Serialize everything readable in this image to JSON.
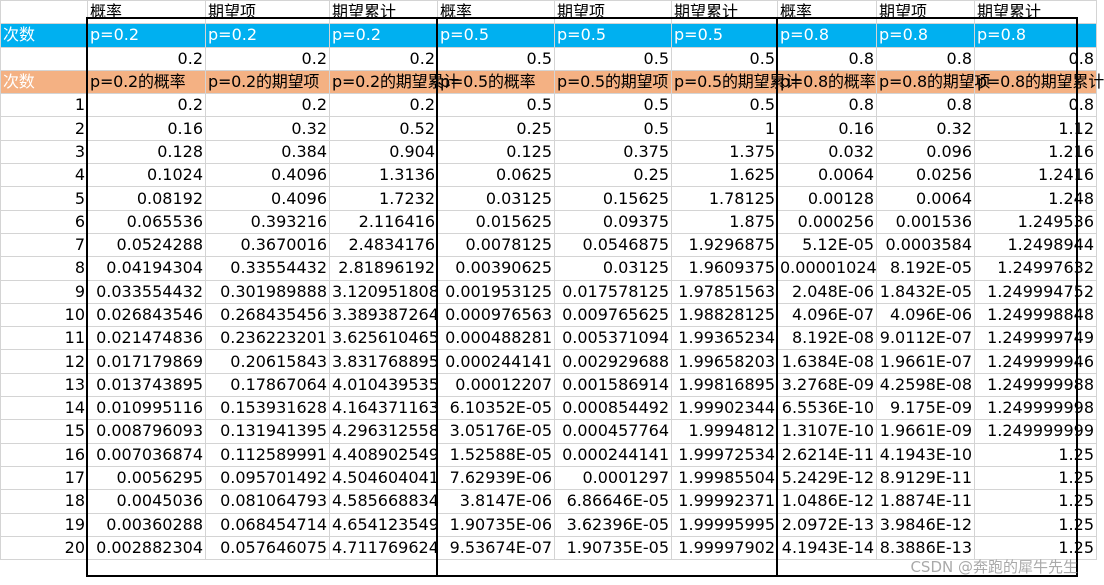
{
  "header_row": [
    "",
    "概率",
    "期望项",
    "期望累计",
    "概率",
    "期望项",
    "期望累计",
    "概率",
    "期望项",
    "期望累计"
  ],
  "p_row": [
    "次数",
    "p=0.2",
    "p=0.2",
    "p=0.2",
    "p=0.5",
    "p=0.5",
    "p=0.5",
    "p=0.8",
    "p=0.8",
    "p=0.8"
  ],
  "value_row": [
    "",
    "0.2",
    "0.2",
    "0.2",
    "0.5",
    "0.5",
    "0.5",
    "0.8",
    "0.8",
    "0.8"
  ],
  "label_row": [
    "次数",
    "p=0.2的概率",
    "p=0.2的期望项",
    "p=0.2的期望累计",
    "p=0.5的概率",
    "p=0.5的期望项",
    "p=0.5的期望累计",
    "p=0.8的概率",
    "p=0.8的期望项",
    "p=0.8的期望累计"
  ],
  "rows": [
    [
      "1",
      "0.2",
      "0.2",
      "0.2",
      "0.5",
      "0.5",
      "0.5",
      "0.8",
      "0.8",
      "0.8"
    ],
    [
      "2",
      "0.16",
      "0.32",
      "0.52",
      "0.25",
      "0.5",
      "1",
      "0.16",
      "0.32",
      "1.12"
    ],
    [
      "3",
      "0.128",
      "0.384",
      "0.904",
      "0.125",
      "0.375",
      "1.375",
      "0.032",
      "0.096",
      "1.216"
    ],
    [
      "4",
      "0.1024",
      "0.4096",
      "1.3136",
      "0.0625",
      "0.25",
      "1.625",
      "0.0064",
      "0.0256",
      "1.2416"
    ],
    [
      "5",
      "0.08192",
      "0.4096",
      "1.7232",
      "0.03125",
      "0.15625",
      "1.78125",
      "0.00128",
      "0.0064",
      "1.248"
    ],
    [
      "6",
      "0.065536",
      "0.393216",
      "2.116416",
      "0.015625",
      "0.09375",
      "1.875",
      "0.000256",
      "0.001536",
      "1.249536"
    ],
    [
      "7",
      "0.0524288",
      "0.3670016",
      "2.4834176",
      "0.0078125",
      "0.0546875",
      "1.9296875",
      "5.12E-05",
      "0.0003584",
      "1.2498944"
    ],
    [
      "8",
      "0.04194304",
      "0.33554432",
      "2.81896192",
      "0.00390625",
      "0.03125",
      "1.9609375",
      "0.00001024",
      "8.192E-05",
      "1.24997632"
    ],
    [
      "9",
      "0.033554432",
      "0.301989888",
      "3.120951808",
      "0.001953125",
      "0.017578125",
      "1.97851563",
      "2.048E-06",
      "1.8432E-05",
      "1.249994752"
    ],
    [
      "10",
      "0.026843546",
      "0.268435456",
      "3.389387264",
      "0.000976563",
      "0.009765625",
      "1.98828125",
      "4.096E-07",
      "4.096E-06",
      "1.249998848"
    ],
    [
      "11",
      "0.021474836",
      "0.236223201",
      "3.625610465",
      "0.000488281",
      "0.005371094",
      "1.99365234",
      "8.192E-08",
      "9.0112E-07",
      "1.249999749"
    ],
    [
      "12",
      "0.017179869",
      "0.20615843",
      "3.831768895",
      "0.000244141",
      "0.002929688",
      "1.99658203",
      "1.6384E-08",
      "1.9661E-07",
      "1.249999946"
    ],
    [
      "13",
      "0.013743895",
      "0.17867064",
      "4.010439535",
      "0.00012207",
      "0.001586914",
      "1.99816895",
      "3.2768E-09",
      "4.2598E-08",
      "1.249999988"
    ],
    [
      "14",
      "0.010995116",
      "0.153931628",
      "4.164371163",
      "6.10352E-05",
      "0.000854492",
      "1.99902344",
      "6.5536E-10",
      "9.175E-09",
      "1.249999998"
    ],
    [
      "15",
      "0.008796093",
      "0.131941395",
      "4.296312558",
      "3.05176E-05",
      "0.000457764",
      "1.9994812",
      "1.3107E-10",
      "1.9661E-09",
      "1.249999999"
    ],
    [
      "16",
      "0.007036874",
      "0.112589991",
      "4.408902549",
      "1.52588E-05",
      "0.000244141",
      "1.99972534",
      "2.6214E-11",
      "4.1943E-10",
      "1.25"
    ],
    [
      "17",
      "0.0056295",
      "0.095701492",
      "4.504604041",
      "7.62939E-06",
      "0.0001297",
      "1.99985504",
      "5.2429E-12",
      "8.9129E-11",
      "1.25"
    ],
    [
      "18",
      "0.0045036",
      "0.081064793",
      "4.585668834",
      "3.8147E-06",
      "6.86646E-05",
      "1.99992371",
      "1.0486E-12",
      "1.8874E-11",
      "1.25"
    ],
    [
      "19",
      "0.00360288",
      "0.068454714",
      "4.654123549",
      "1.90735E-06",
      "3.62396E-05",
      "1.99995995",
      "2.0972E-13",
      "3.9846E-12",
      "1.25"
    ],
    [
      "20",
      "0.002882304",
      "0.057646075",
      "4.711769624",
      "9.53674E-07",
      "1.90735E-05",
      "1.99997902",
      "4.1943E-14",
      "8.3886E-13",
      "1.25"
    ]
  ],
  "watermark": "CSDN @奔跑的犀牛先生",
  "colors": {
    "blue_row": "#00b0f0",
    "orange_row": "#f4b183",
    "grid": "#d4d4d4"
  }
}
